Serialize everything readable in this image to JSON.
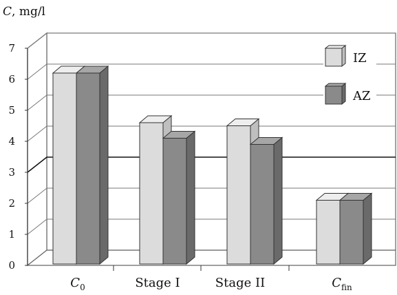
{
  "chart_data": {
    "type": "bar",
    "ylabel": "C,  mg/l",
    "ylim": [
      0,
      7
    ],
    "yticks": [
      "0",
      "1",
      "2",
      "3",
      "4",
      "5",
      "6",
      "7"
    ],
    "categories": [
      {
        "main": "C",
        "sub": "0"
      },
      {
        "main": "Stage I",
        "sub": ""
      },
      {
        "main": "Stage II",
        "sub": ""
      },
      {
        "main": "C",
        "sub": "fin"
      }
    ],
    "series": [
      {
        "name": "IZ",
        "values": [
          6.2,
          4.6,
          4.5,
          2.1
        ]
      },
      {
        "name": "AZ",
        "values": [
          6.2,
          4.1,
          3.9,
          2.1
        ]
      }
    ],
    "legend_position": "top-right",
    "grid": true,
    "colors": {
      "series_front": [
        "#dcdcdc",
        "#8a8a8a"
      ],
      "series_top": [
        "#eeeeee",
        "#a6a6a6"
      ],
      "series_side": [
        "#bfbfbf",
        "#6a6a6a"
      ],
      "grid": "#777777",
      "wall": "#ffffff"
    }
  }
}
